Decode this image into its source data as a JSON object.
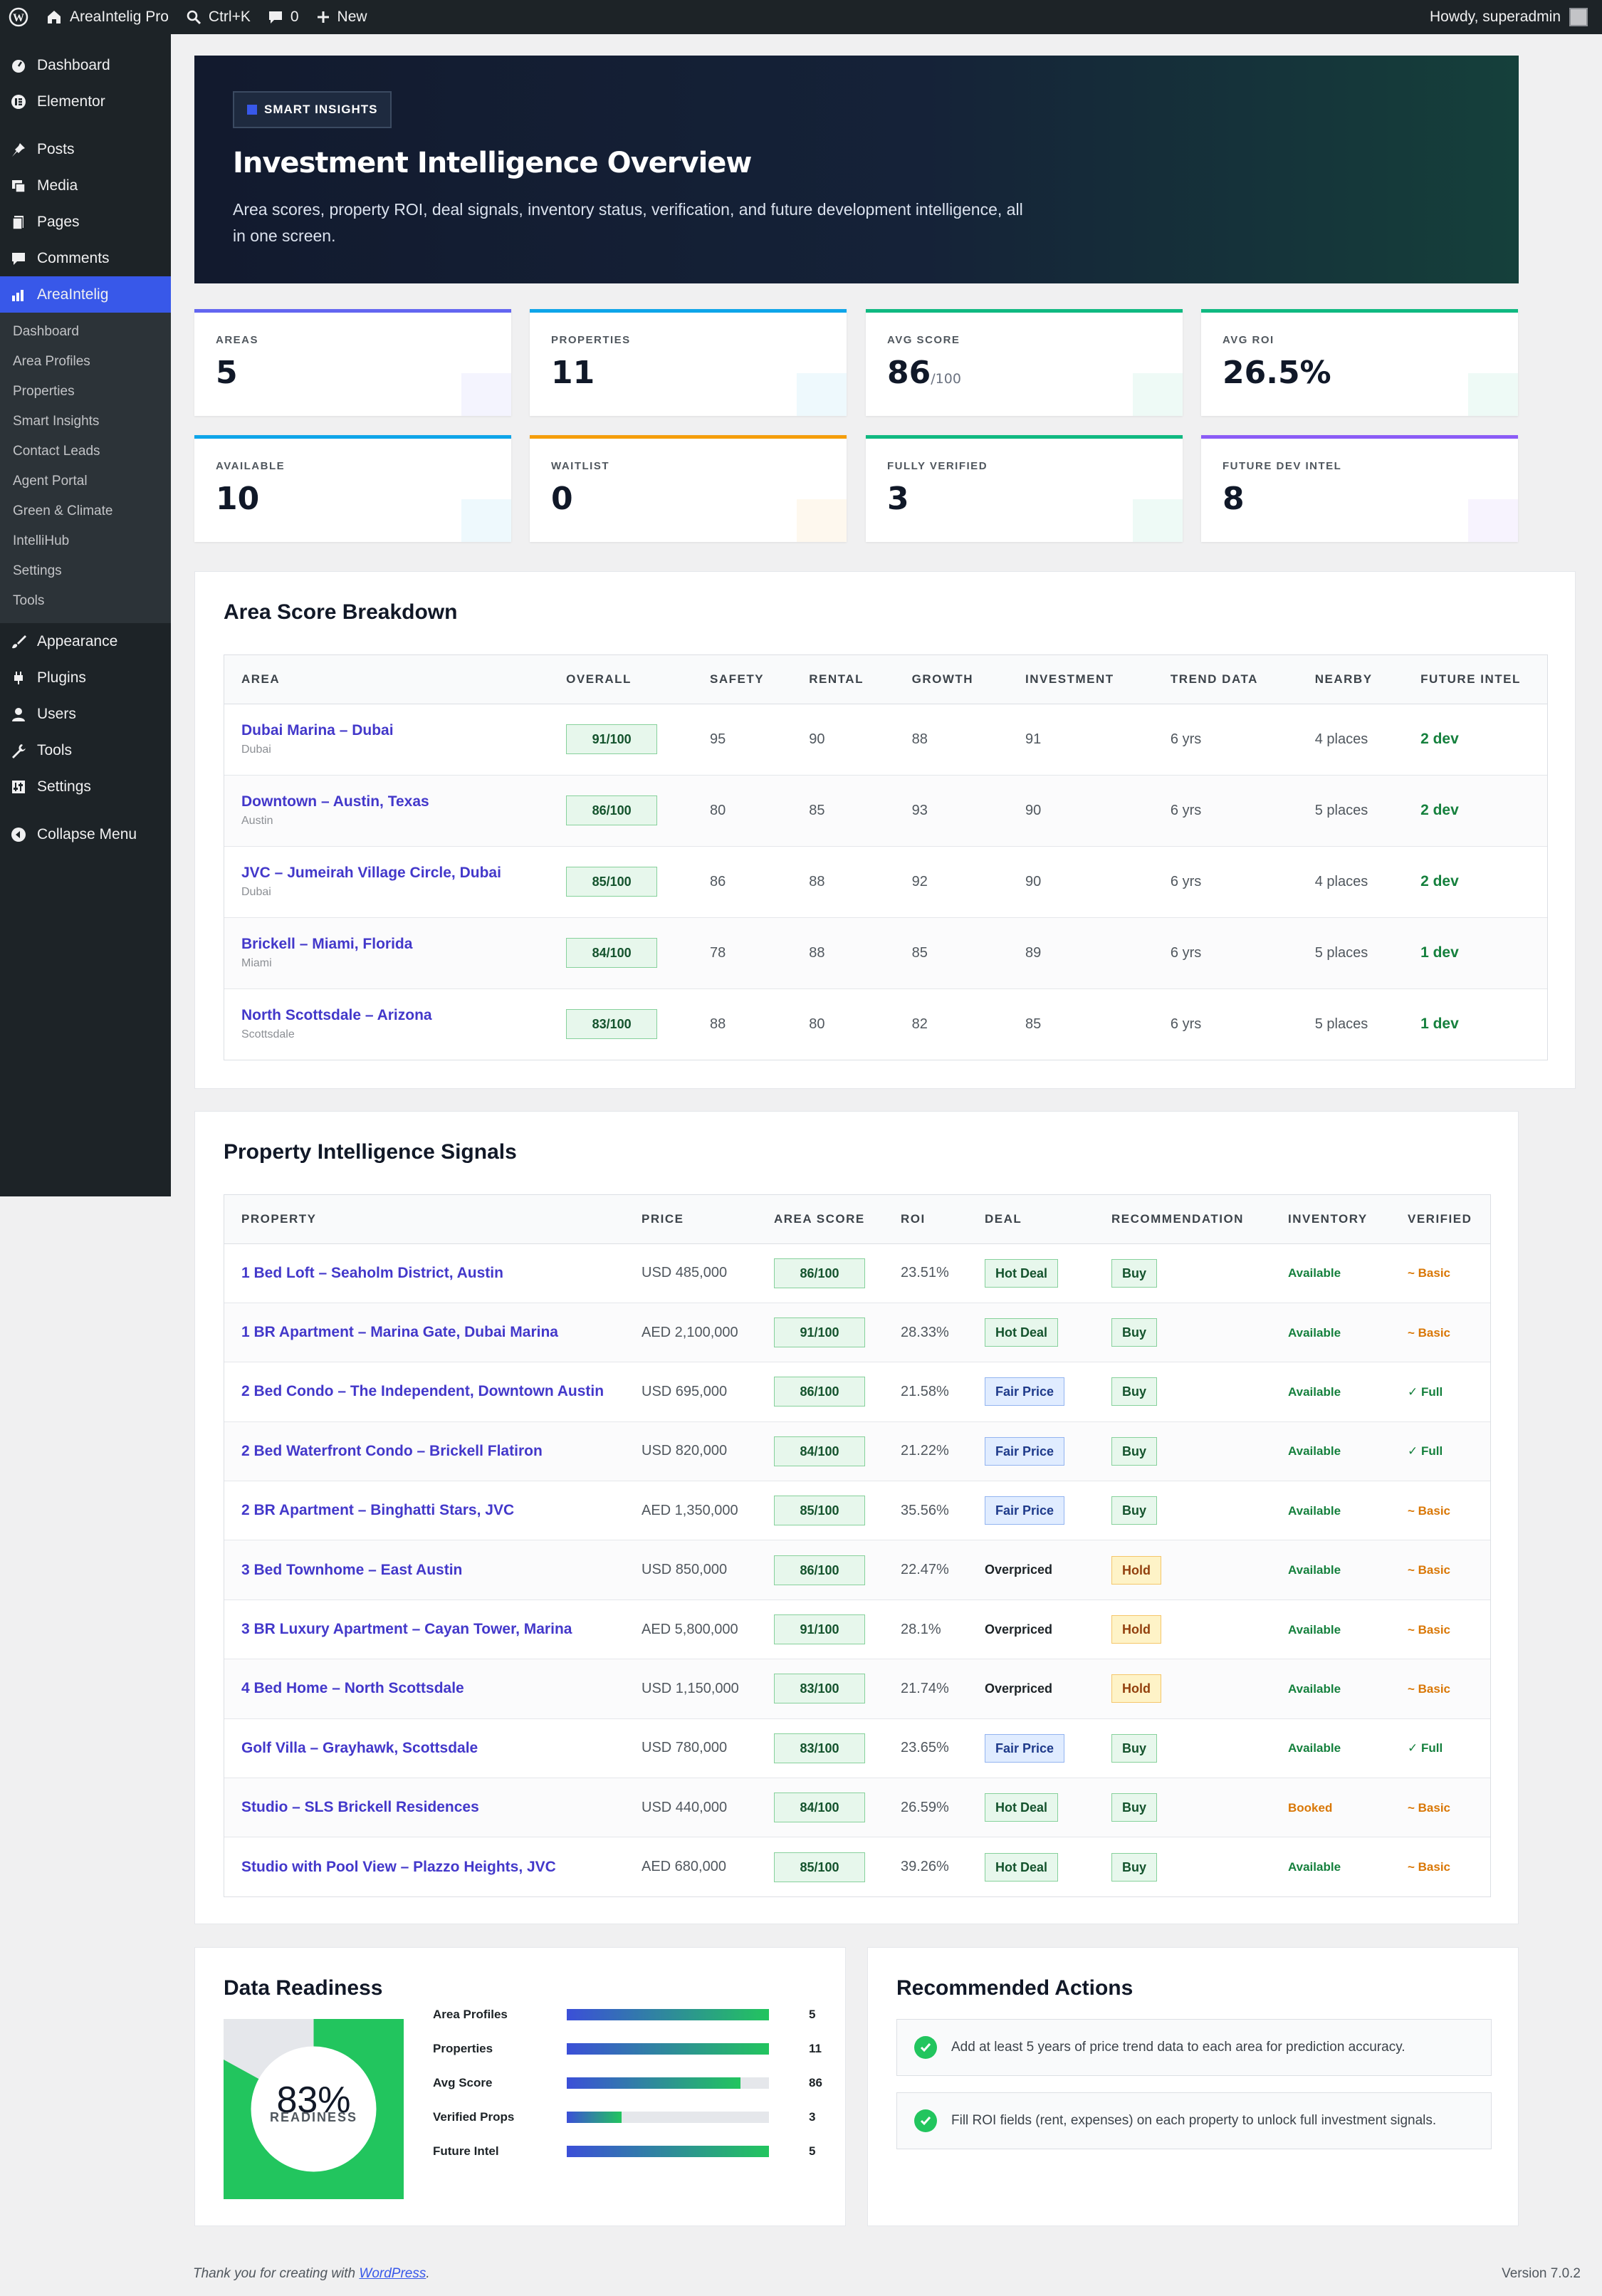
{
  "adminbar": {
    "site_name": "AreaIntelig Pro",
    "shortcut": "Ctrl+K",
    "comments_count": "0",
    "new_label": "New",
    "greeting": "Howdy, superadmin"
  },
  "sidebar": {
    "items_top": [
      {
        "label": "Dashboard",
        "icon": "dashboard-icon"
      },
      {
        "label": "Elementor",
        "icon": "elementor-icon"
      }
    ],
    "items_mid": [
      {
        "label": "Posts",
        "icon": "pin-icon"
      },
      {
        "label": "Media",
        "icon": "media-icon"
      },
      {
        "label": "Pages",
        "icon": "pages-icon"
      },
      {
        "label": "Comments",
        "icon": "comment-icon"
      },
      {
        "label": "AreaIntelig",
        "icon": "chart-icon"
      }
    ],
    "submenu": [
      "Dashboard",
      "Area Profiles",
      "Properties",
      "Smart Insights",
      "Contact Leads",
      "Agent Portal",
      "Green & Climate",
      "IntelliHub",
      "Settings",
      "Tools"
    ],
    "items_bottom": [
      {
        "label": "Appearance",
        "icon": "brush-icon"
      },
      {
        "label": "Plugins",
        "icon": "plugin-icon"
      },
      {
        "label": "Users",
        "icon": "user-icon"
      },
      {
        "label": "Tools",
        "icon": "wrench-icon"
      },
      {
        "label": "Settings",
        "icon": "settings-icon"
      }
    ],
    "collapse_label": "Collapse Menu"
  },
  "hero": {
    "badge": "SMART INSIGHTS",
    "title": "Investment Intelligence Overview",
    "subtitle": "Area scores, property ROI, deal signals, inventory status, verification, and future development intelligence, all in one screen."
  },
  "stats": [
    {
      "label": "AREAS",
      "value": "5",
      "suffix": "",
      "color": "#6366f1"
    },
    {
      "label": "PROPERTIES",
      "value": "11",
      "suffix": "",
      "color": "#0ea5e9"
    },
    {
      "label": "AVG SCORE",
      "value": "86",
      "suffix": "/100",
      "color": "#10b981"
    },
    {
      "label": "AVG ROI",
      "value": "26.5%",
      "suffix": "",
      "color": "#10b981"
    },
    {
      "label": "AVAILABLE",
      "value": "10",
      "suffix": "",
      "color": "#0ea5e9"
    },
    {
      "label": "WAITLIST",
      "value": "0",
      "suffix": "",
      "color": "#f59e0b"
    },
    {
      "label": "FULLY VERIFIED",
      "value": "3",
      "suffix": "",
      "color": "#10b981"
    },
    {
      "label": "FUTURE DEV INTEL",
      "value": "8",
      "suffix": "",
      "color": "#8b5cf6"
    }
  ],
  "area_section": {
    "title": "Area Score Breakdown",
    "columns": [
      "AREA",
      "OVERALL",
      "SAFETY",
      "RENTAL",
      "GROWTH",
      "INVESTMENT",
      "TREND DATA",
      "NEARBY",
      "FUTURE INTEL"
    ],
    "rows": [
      {
        "area": "Dubai Marina – Dubai",
        "city": "Dubai",
        "overall": "91/100",
        "safety": "95",
        "rental": "90",
        "growth": "88",
        "investment": "91",
        "trend": "6 yrs",
        "nearby": "4 places",
        "future": "2 dev"
      },
      {
        "area": "Downtown – Austin, Texas",
        "city": "Austin",
        "overall": "86/100",
        "safety": "80",
        "rental": "85",
        "growth": "93",
        "investment": "90",
        "trend": "6 yrs",
        "nearby": "5 places",
        "future": "2 dev"
      },
      {
        "area": "JVC – Jumeirah Village Circle, Dubai",
        "city": "Dubai",
        "overall": "85/100",
        "safety": "86",
        "rental": "88",
        "growth": "92",
        "investment": "90",
        "trend": "6 yrs",
        "nearby": "4 places",
        "future": "2 dev"
      },
      {
        "area": "Brickell – Miami, Florida",
        "city": "Miami",
        "overall": "84/100",
        "safety": "78",
        "rental": "88",
        "growth": "85",
        "investment": "89",
        "trend": "6 yrs",
        "nearby": "5 places",
        "future": "1 dev"
      },
      {
        "area": "North Scottsdale – Arizona",
        "city": "Scottsdale",
        "overall": "83/100",
        "safety": "88",
        "rental": "80",
        "growth": "82",
        "investment": "85",
        "trend": "6 yrs",
        "nearby": "5 places",
        "future": "1 dev"
      }
    ]
  },
  "property_section": {
    "title": "Property Intelligence Signals",
    "columns": [
      "PROPERTY",
      "PRICE",
      "AREA SCORE",
      "ROI",
      "DEAL",
      "RECOMMENDATION",
      "INVENTORY",
      "VERIFIED"
    ],
    "rows": [
      {
        "name": "1 Bed Loft – Seaholm District, Austin",
        "price": "USD 485,000",
        "score": "86/100",
        "roi": "23.51%",
        "deal": "Hot Deal",
        "deal_type": "hot",
        "rec": "Buy",
        "rec_type": "buy",
        "inv": "Available",
        "inv_type": "avail",
        "ver": "~ Basic",
        "ver_type": "basic"
      },
      {
        "name": "1 BR Apartment – Marina Gate, Dubai Marina",
        "price": "AED 2,100,000",
        "score": "91/100",
        "roi": "28.33%",
        "deal": "Hot Deal",
        "deal_type": "hot",
        "rec": "Buy",
        "rec_type": "buy",
        "inv": "Available",
        "inv_type": "avail",
        "ver": "~ Basic",
        "ver_type": "basic"
      },
      {
        "name": "2 Bed Condo – The Independent, Downtown Austin",
        "price": "USD 695,000",
        "score": "86/100",
        "roi": "21.58%",
        "deal": "Fair Price",
        "deal_type": "fair",
        "rec": "Buy",
        "rec_type": "buy",
        "inv": "Available",
        "inv_type": "avail",
        "ver": "✓ Full",
        "ver_type": "full"
      },
      {
        "name": "2 Bed Waterfront Condo – Brickell Flatiron",
        "price": "USD 820,000",
        "score": "84/100",
        "roi": "21.22%",
        "deal": "Fair Price",
        "deal_type": "fair",
        "rec": "Buy",
        "rec_type": "buy",
        "inv": "Available",
        "inv_type": "avail",
        "ver": "✓ Full",
        "ver_type": "full"
      },
      {
        "name": "2 BR Apartment – Binghatti Stars, JVC",
        "price": "AED 1,350,000",
        "score": "85/100",
        "roi": "35.56%",
        "deal": "Fair Price",
        "deal_type": "fair",
        "rec": "Buy",
        "rec_type": "buy",
        "inv": "Available",
        "inv_type": "avail",
        "ver": "~ Basic",
        "ver_type": "basic"
      },
      {
        "name": "3 Bed Townhome – East Austin",
        "price": "USD 850,000",
        "score": "86/100",
        "roi": "22.47%",
        "deal": "Overpriced",
        "deal_type": "over",
        "rec": "Hold",
        "rec_type": "hold",
        "inv": "Available",
        "inv_type": "avail",
        "ver": "~ Basic",
        "ver_type": "basic"
      },
      {
        "name": "3 BR Luxury Apartment – Cayan Tower, Marina",
        "price": "AED 5,800,000",
        "score": "91/100",
        "roi": "28.1%",
        "deal": "Overpriced",
        "deal_type": "over",
        "rec": "Hold",
        "rec_type": "hold",
        "inv": "Available",
        "inv_type": "avail",
        "ver": "~ Basic",
        "ver_type": "basic"
      },
      {
        "name": "4 Bed Home – North Scottsdale",
        "price": "USD 1,150,000",
        "score": "83/100",
        "roi": "21.74%",
        "deal": "Overpriced",
        "deal_type": "over",
        "rec": "Hold",
        "rec_type": "hold",
        "inv": "Available",
        "inv_type": "avail",
        "ver": "~ Basic",
        "ver_type": "basic"
      },
      {
        "name": "Golf Villa – Grayhawk, Scottsdale",
        "price": "USD 780,000",
        "score": "83/100",
        "roi": "23.65%",
        "deal": "Fair Price",
        "deal_type": "fair",
        "rec": "Buy",
        "rec_type": "buy",
        "inv": "Available",
        "inv_type": "avail",
        "ver": "✓ Full",
        "ver_type": "full"
      },
      {
        "name": "Studio – SLS Brickell Residences",
        "price": "USD 440,000",
        "score": "84/100",
        "roi": "26.59%",
        "deal": "Hot Deal",
        "deal_type": "hot",
        "rec": "Buy",
        "rec_type": "buy",
        "inv": "Booked",
        "inv_type": "booked",
        "ver": "~ Basic",
        "ver_type": "basic"
      },
      {
        "name": "Studio with Pool View – Plazzo Heights, JVC",
        "price": "AED 680,000",
        "score": "85/100",
        "roi": "39.26%",
        "deal": "Hot Deal",
        "deal_type": "hot",
        "rec": "Buy",
        "rec_type": "buy",
        "inv": "Available",
        "inv_type": "avail",
        "ver": "~ Basic",
        "ver_type": "basic"
      }
    ]
  },
  "readiness": {
    "title": "Data Readiness",
    "percent_label": "83%",
    "percent_value": 83,
    "caption": "READINESS",
    "bars": [
      {
        "label": "Area Profiles",
        "value": "5",
        "fill": 1.0
      },
      {
        "label": "Properties",
        "value": "11",
        "fill": 1.0
      },
      {
        "label": "Avg Score",
        "value": "86",
        "fill": 0.86
      },
      {
        "label": "Verified Props",
        "value": "3",
        "fill": 0.27
      },
      {
        "label": "Future Intel",
        "value": "5",
        "fill": 1.0
      }
    ]
  },
  "actions": {
    "title": "Recommended Actions",
    "items": [
      "Add at least 5 years of price trend data to each area for prediction accuracy.",
      "Fill ROI fields (rent, expenses) on each property to unlock full investment signals."
    ]
  },
  "footer": {
    "thanks_prefix": "Thank you for creating with ",
    "thanks_link": "WordPress",
    "thanks_suffix": ".",
    "version": "Version 7.0.2"
  }
}
